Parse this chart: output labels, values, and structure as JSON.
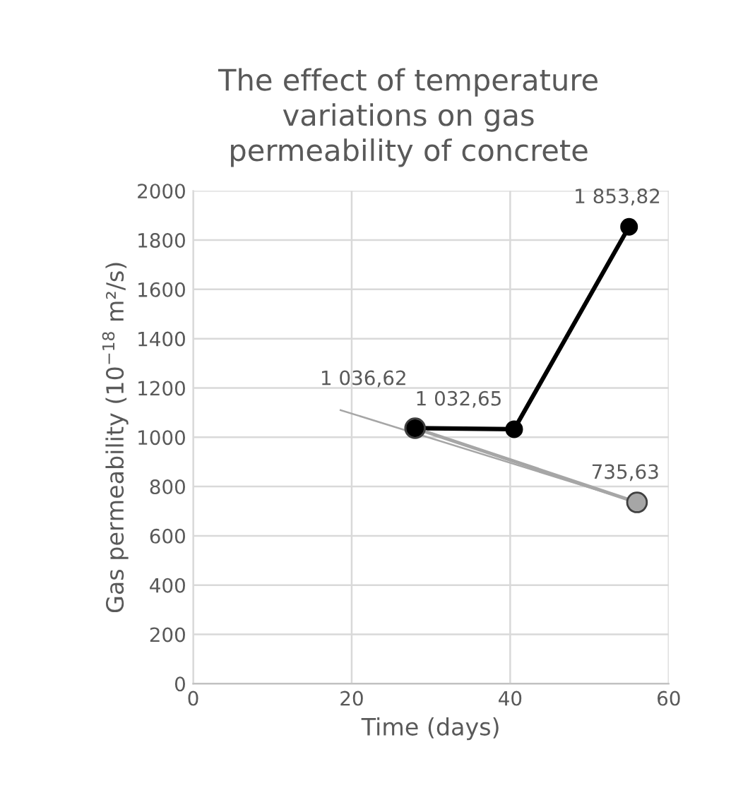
{
  "chart_data": {
    "type": "line",
    "title": "The effect of temperature\nvariations on gas\npermeability of concrete",
    "xlabel": "Time (days)",
    "ylabel": "Gas permeability (10$^{−18}$ m²/s)",
    "series": [
      {
        "color": "#000000",
        "x": [
          28,
          40.5,
          55
        ],
        "values": [
          1037,
          1032.65,
          1853.82
        ],
        "value_labels": [
          null,
          "1 032,65",
          "1 853,82"
        ],
        "marker": "circle"
      },
      {
        "color": "#a6a6a6",
        "x": [
          28,
          56
        ],
        "values": [
          1036.62,
          735.63
        ],
        "value_labels": [
          "1 036,62",
          "735,63"
        ],
        "marker": "circle"
      },
      {
        "color": "#a6a6a6",
        "x": [
          18.6,
          56
        ],
        "values": [
          1110,
          736
        ],
        "marker": "none"
      }
    ],
    "xlim": [
      0,
      60
    ],
    "xticks": [
      0,
      20,
      40,
      60
    ],
    "ylim": [
      0,
      2000
    ],
    "yticks": [
      0,
      200,
      400,
      600,
      800,
      1000,
      1200,
      1400,
      1600,
      1800,
      2000
    ],
    "grid": true,
    "legend": false
  }
}
